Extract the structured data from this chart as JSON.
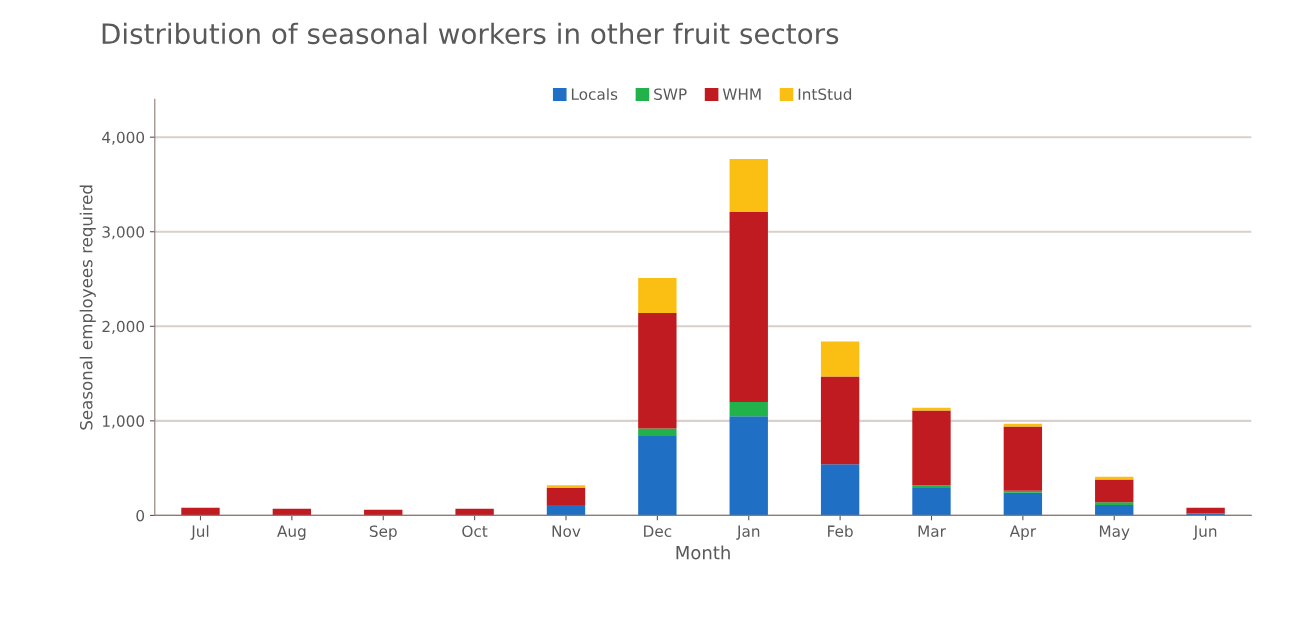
{
  "chart_data": {
    "type": "bar",
    "title": "Distribution of seasonal workers in other fruit sectors",
    "xlabel": "Month",
    "ylabel": "Seasonal employees required",
    "categories": [
      "Jul",
      "Aug",
      "Sep",
      "Oct",
      "Nov",
      "Dec",
      "Jan",
      "Feb",
      "Mar",
      "Apr",
      "May",
      "Jun"
    ],
    "stacked": true,
    "series": [
      {
        "name": "Locals",
        "color": "#1f6fc5",
        "values": [
          0,
          0,
          0,
          0,
          110,
          840,
          1050,
          540,
          290,
          240,
          110,
          20
        ]
      },
      {
        "name": "SWP",
        "color": "#21b24b",
        "values": [
          0,
          0,
          0,
          0,
          0,
          80,
          150,
          0,
          30,
          20,
          30,
          0
        ]
      },
      {
        "name": "WHM",
        "color": "#c01b20",
        "values": [
          80,
          70,
          60,
          70,
          180,
          1220,
          2010,
          930,
          790,
          680,
          240,
          60
        ]
      },
      {
        "name": "IntStud",
        "color": "#fbbf14",
        "values": [
          0,
          0,
          0,
          0,
          30,
          370,
          560,
          370,
          30,
          30,
          30,
          0
        ]
      }
    ],
    "ylim": [
      0,
      4400
    ],
    "yticks": [
      {
        "value": 0,
        "label": "0"
      },
      {
        "value": 1000,
        "label": "1,000"
      },
      {
        "value": 2000,
        "label": "2,000"
      },
      {
        "value": 3000,
        "label": "3,000"
      },
      {
        "value": 4000,
        "label": "4,000"
      }
    ],
    "grid": "y",
    "legend": "top"
  }
}
